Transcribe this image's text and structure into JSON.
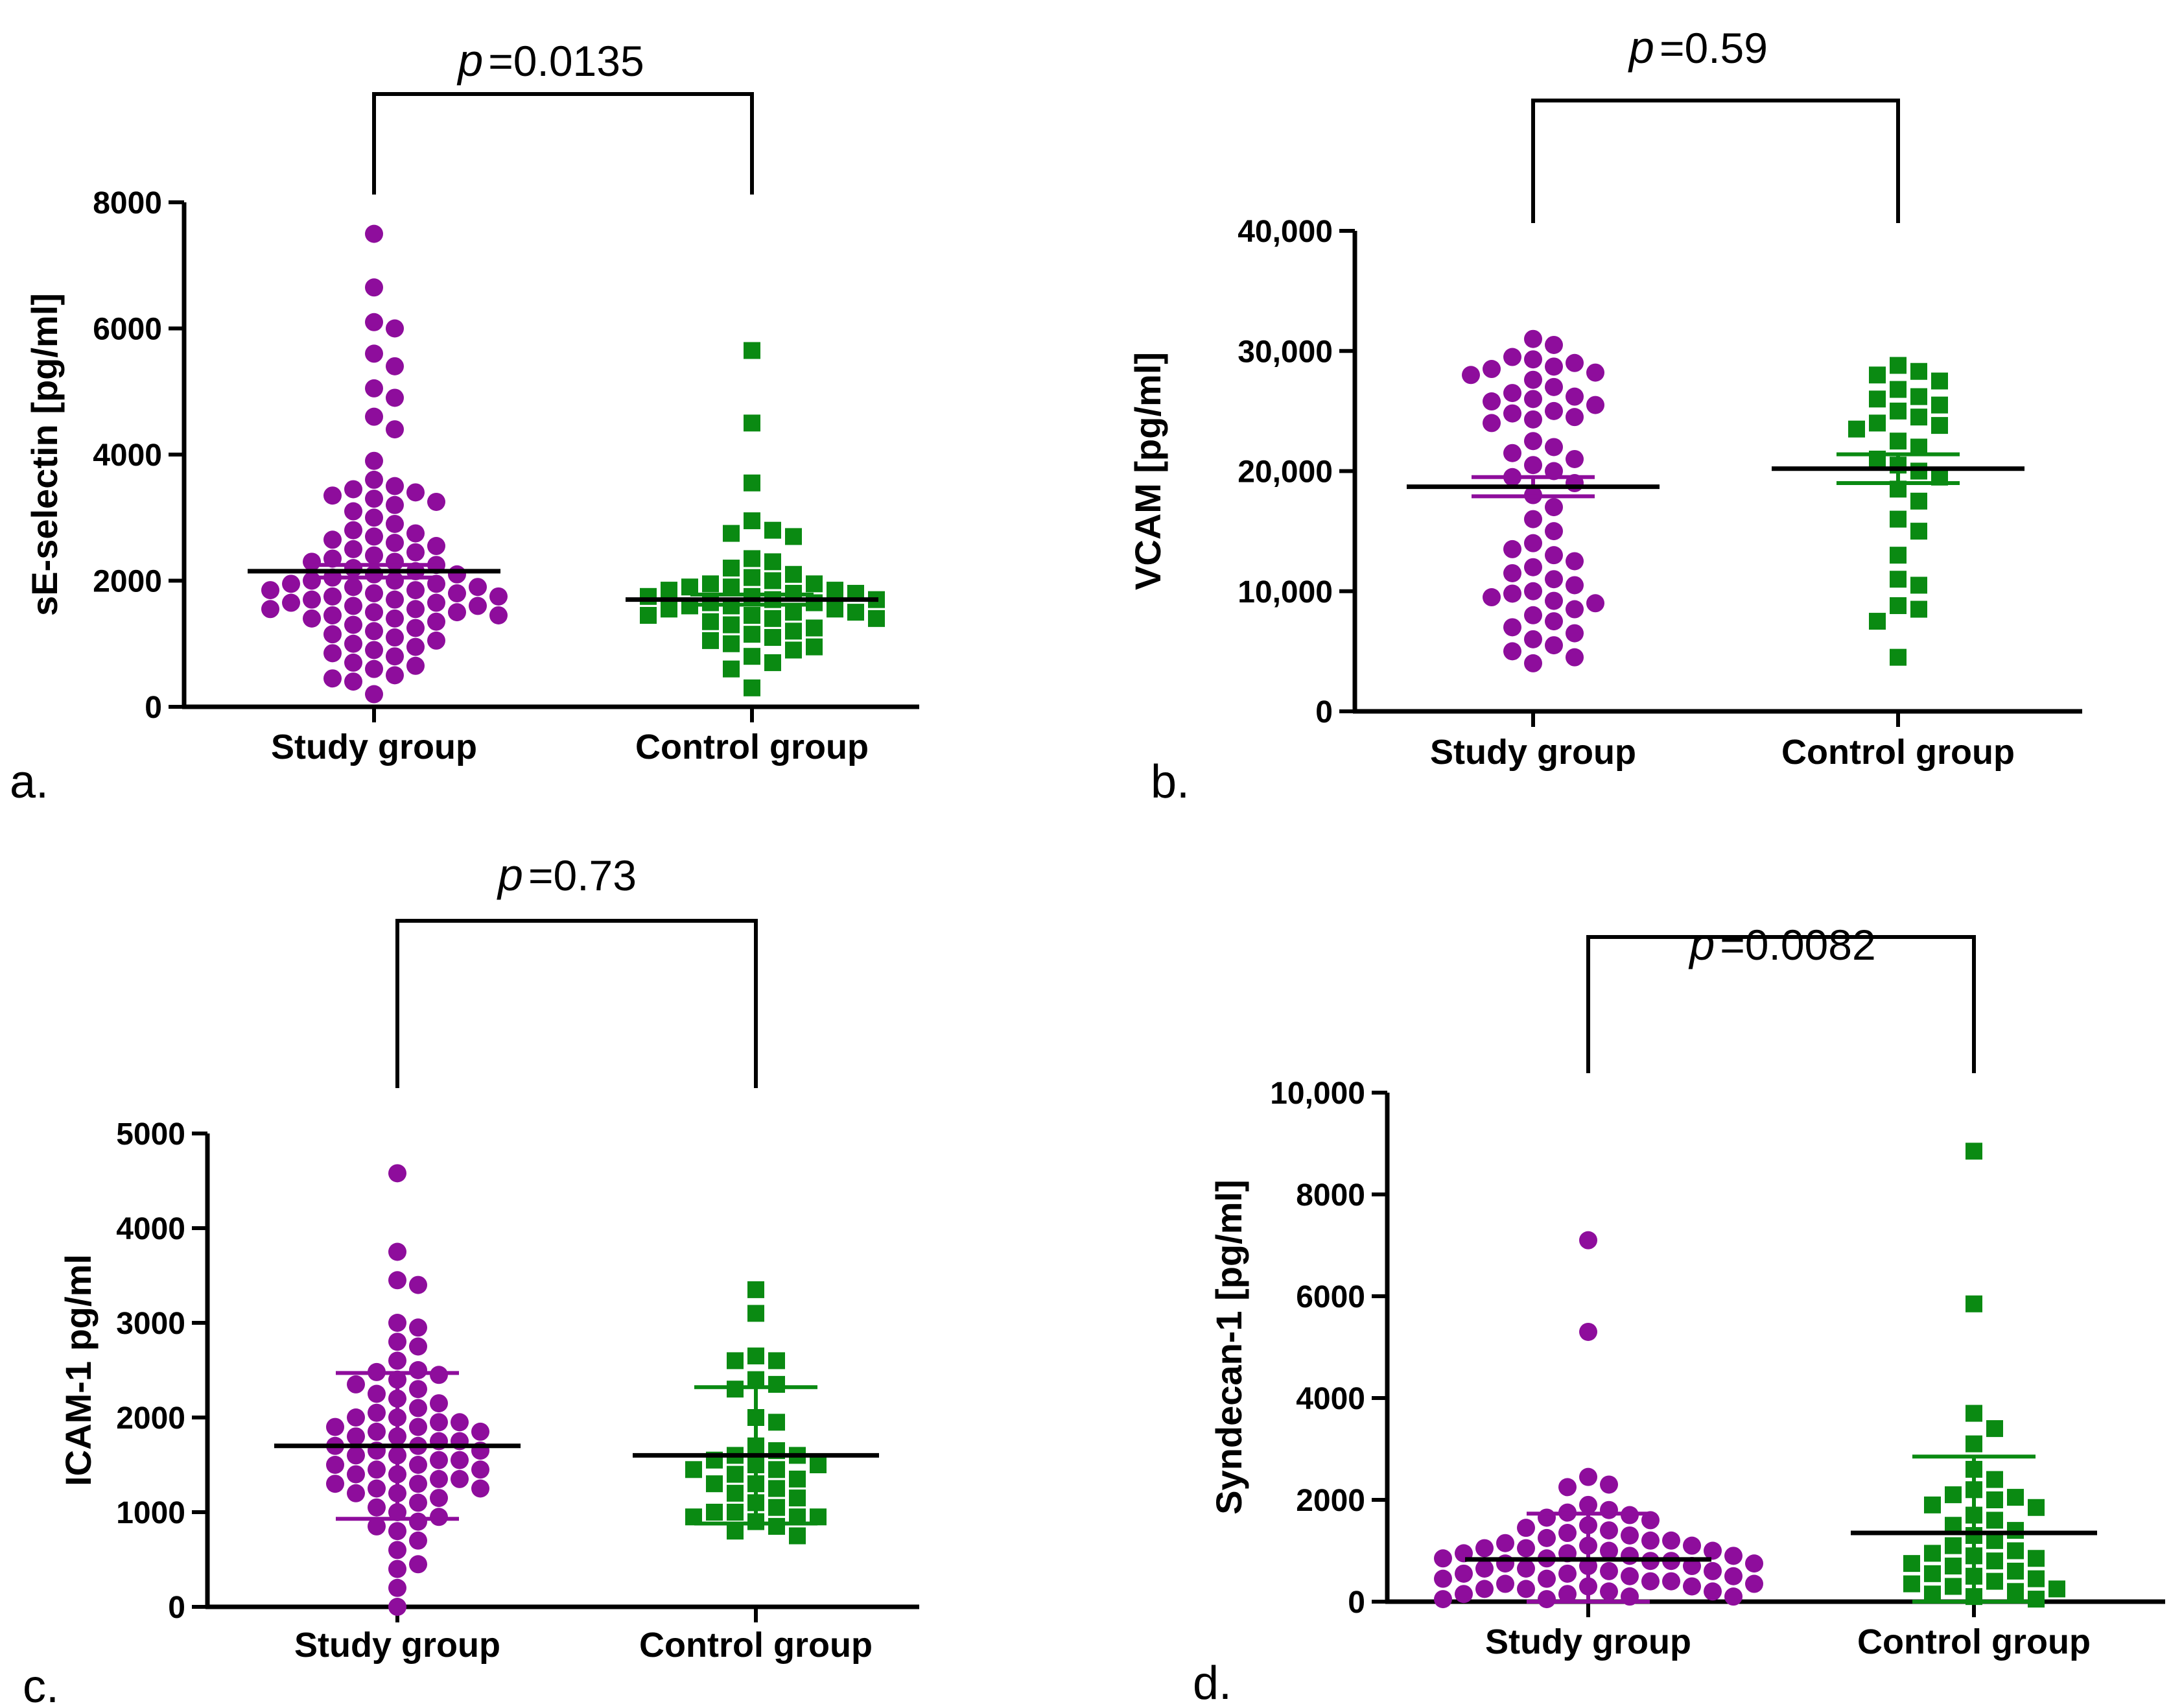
{
  "colors": {
    "study": "#8E0D9C",
    "control": "#0A8A12",
    "mean": "#000000"
  },
  "chart_data": [
    {
      "type": "scatter",
      "panel_label": "a.",
      "ylabel": "sE-selectin [pg/ml]",
      "ylim": [
        0,
        8000
      ],
      "yticks": [
        0,
        2000,
        4000,
        6000,
        8000
      ],
      "ytick_labels": [
        "0",
        "2000",
        "4000",
        "6000",
        "8000"
      ],
      "categories": [
        "Study group",
        "Control group"
      ],
      "p_prefix": "p",
      "p_text": "=0.0135",
      "series": [
        {
          "name": "Study group",
          "marker": "circle",
          "values": [
            7500,
            6650,
            6100,
            6000,
            5600,
            5400,
            5050,
            4900,
            4600,
            4400,
            3900,
            3600,
            3500,
            3450,
            3400,
            3350,
            3300,
            3250,
            3200,
            3100,
            3000,
            2900,
            2800,
            2750,
            2700,
            2650,
            2600,
            2550,
            2500,
            2450,
            2400,
            2350,
            2300,
            2300,
            2250,
            2200,
            2150,
            2100,
            2100,
            2050,
            2000,
            2000,
            1950,
            1950,
            1900,
            1900,
            1850,
            1850,
            1800,
            1800,
            1750,
            1750,
            1700,
            1700,
            1650,
            1650,
            1600,
            1600,
            1550,
            1550,
            1500,
            1500,
            1450,
            1450,
            1400,
            1400,
            1350,
            1300,
            1250,
            1200,
            1150,
            1100,
            1050,
            1000,
            950,
            900,
            850,
            800,
            700,
            650,
            600,
            500,
            450,
            400,
            200
          ],
          "mean": 2150,
          "error": 100
        },
        {
          "name": "Control group",
          "marker": "square",
          "values": [
            5650,
            4500,
            3550,
            2950,
            2800,
            2750,
            2700,
            2350,
            2300,
            2200,
            2100,
            2050,
            2000,
            1950,
            1950,
            1900,
            1900,
            1850,
            1850,
            1800,
            1800,
            1750,
            1750,
            1700,
            1700,
            1650,
            1650,
            1600,
            1600,
            1550,
            1550,
            1500,
            1500,
            1450,
            1450,
            1400,
            1400,
            1350,
            1300,
            1250,
            1200,
            1150,
            1100,
            1050,
            1000,
            950,
            900,
            800,
            700,
            600,
            300
          ],
          "mean": 1700,
          "error": 80
        }
      ]
    },
    {
      "type": "scatter",
      "panel_label": "b.",
      "ylabel": "VCAM [pg/ml]",
      "ylim": [
        0,
        40000
      ],
      "yticks": [
        0,
        10000,
        20000,
        30000,
        40000
      ],
      "ytick_labels": [
        "0",
        "10,000",
        "20,000",
        "30,000",
        "40,000"
      ],
      "categories": [
        "Study group",
        "Control group"
      ],
      "p_prefix": "p",
      "p_text": "=0.59",
      "series": [
        {
          "name": "Study group",
          "marker": "circle",
          "values": [
            31000,
            30500,
            29500,
            29300,
            29000,
            28700,
            28500,
            28200,
            28000,
            27600,
            27000,
            26500,
            26200,
            26000,
            25800,
            25500,
            25000,
            24800,
            24500,
            24300,
            24000,
            22500,
            22000,
            21500,
            21000,
            20500,
            20000,
            19500,
            19000,
            18000,
            17000,
            16000,
            15000,
            14000,
            13500,
            13000,
            12500,
            12000,
            11500,
            11000,
            10500,
            10000,
            9800,
            9500,
            9200,
            9000,
            8500,
            8000,
            7500,
            7000,
            6500,
            6000,
            5500,
            5000,
            4500,
            4000
          ],
          "mean": 18700,
          "error": 800
        },
        {
          "name": "Control group",
          "marker": "square",
          "values": [
            28800,
            28300,
            28000,
            27500,
            26800,
            26200,
            26000,
            25500,
            25000,
            24500,
            24000,
            23800,
            23500,
            22500,
            22000,
            21000,
            20500,
            20000,
            19500,
            18500,
            17500,
            16000,
            15000,
            13000,
            11000,
            10500,
            8800,
            8500,
            7500,
            4500
          ],
          "mean": 20200,
          "error": 1200
        }
      ]
    },
    {
      "type": "scatter",
      "panel_label": "c.",
      "ylabel": "ICAM-1 pg/ml",
      "ylim": [
        0,
        5000
      ],
      "yticks": [
        0,
        1000,
        2000,
        3000,
        4000,
        5000
      ],
      "ytick_labels": [
        "0",
        "1000",
        "2000",
        "3000",
        "4000",
        "5000"
      ],
      "categories": [
        "Study group",
        "Control group"
      ],
      "p_prefix": "p",
      "p_text": "=0.73",
      "series": [
        {
          "name": "Study group",
          "marker": "circle",
          "values": [
            4580,
            3750,
            3450,
            3400,
            3000,
            2950,
            2800,
            2750,
            2600,
            2500,
            2480,
            2450,
            2400,
            2350,
            2300,
            2250,
            2200,
            2150,
            2100,
            2050,
            2000,
            2000,
            1950,
            1950,
            1900,
            1900,
            1850,
            1850,
            1800,
            1800,
            1750,
            1750,
            1700,
            1700,
            1650,
            1650,
            1600,
            1600,
            1550,
            1550,
            1500,
            1500,
            1450,
            1450,
            1400,
            1400,
            1350,
            1350,
            1300,
            1300,
            1250,
            1250,
            1200,
            1200,
            1150,
            1100,
            1050,
            1000,
            950,
            900,
            850,
            800,
            700,
            600,
            450,
            400,
            200,
            0
          ],
          "mean": 1700,
          "sd": 770
        },
        {
          "name": "Control group",
          "marker": "square",
          "values": [
            3350,
            3100,
            2650,
            2600,
            2600,
            2400,
            2350,
            2300,
            2000,
            1950,
            1700,
            1650,
            1600,
            1600,
            1550,
            1500,
            1500,
            1450,
            1450,
            1400,
            1350,
            1300,
            1300,
            1250,
            1200,
            1150,
            1100,
            1050,
            1000,
            1000,
            950,
            950,
            950,
            900,
            850,
            800,
            750
          ],
          "mean": 1600,
          "sd": 720
        }
      ]
    },
    {
      "type": "scatter",
      "panel_label": "d.",
      "ylabel": "Syndecan-1 [pg/ml]",
      "ylim": [
        0,
        10000
      ],
      "yticks": [
        0,
        2000,
        4000,
        6000,
        8000,
        10000
      ],
      "ytick_labels": [
        "0",
        "2000",
        "4000",
        "6000",
        "8000",
        "10,000"
      ],
      "categories": [
        "Study group",
        "Control group"
      ],
      "p_prefix": "p",
      "p_text": "=0.0082",
      "series": [
        {
          "name": "Study group",
          "marker": "circle",
          "values": [
            7100,
            5300,
            2450,
            2300,
            2250,
            1900,
            1800,
            1750,
            1700,
            1650,
            1600,
            1500,
            1450,
            1400,
            1350,
            1300,
            1250,
            1200,
            1200,
            1150,
            1100,
            1100,
            1050,
            1050,
            1000,
            1000,
            950,
            950,
            900,
            900,
            850,
            850,
            800,
            800,
            750,
            750,
            700,
            700,
            650,
            650,
            600,
            600,
            550,
            550,
            500,
            500,
            450,
            450,
            400,
            400,
            350,
            350,
            300,
            300,
            250,
            250,
            200,
            200,
            150,
            150,
            100,
            100,
            50,
            50
          ],
          "mean": 830,
          "sd": 900
        },
        {
          "name": "Control group",
          "marker": "square",
          "values": [
            8850,
            5850,
            3700,
            3400,
            3100,
            2600,
            2400,
            2200,
            2100,
            2050,
            2000,
            1900,
            1850,
            1700,
            1600,
            1500,
            1400,
            1300,
            1200,
            1100,
            1000,
            950,
            900,
            850,
            800,
            750,
            700,
            600,
            550,
            500,
            450,
            400,
            350,
            300,
            250,
            200,
            150,
            100,
            50
          ],
          "mean": 1350,
          "sd": 1500
        }
      ]
    }
  ]
}
